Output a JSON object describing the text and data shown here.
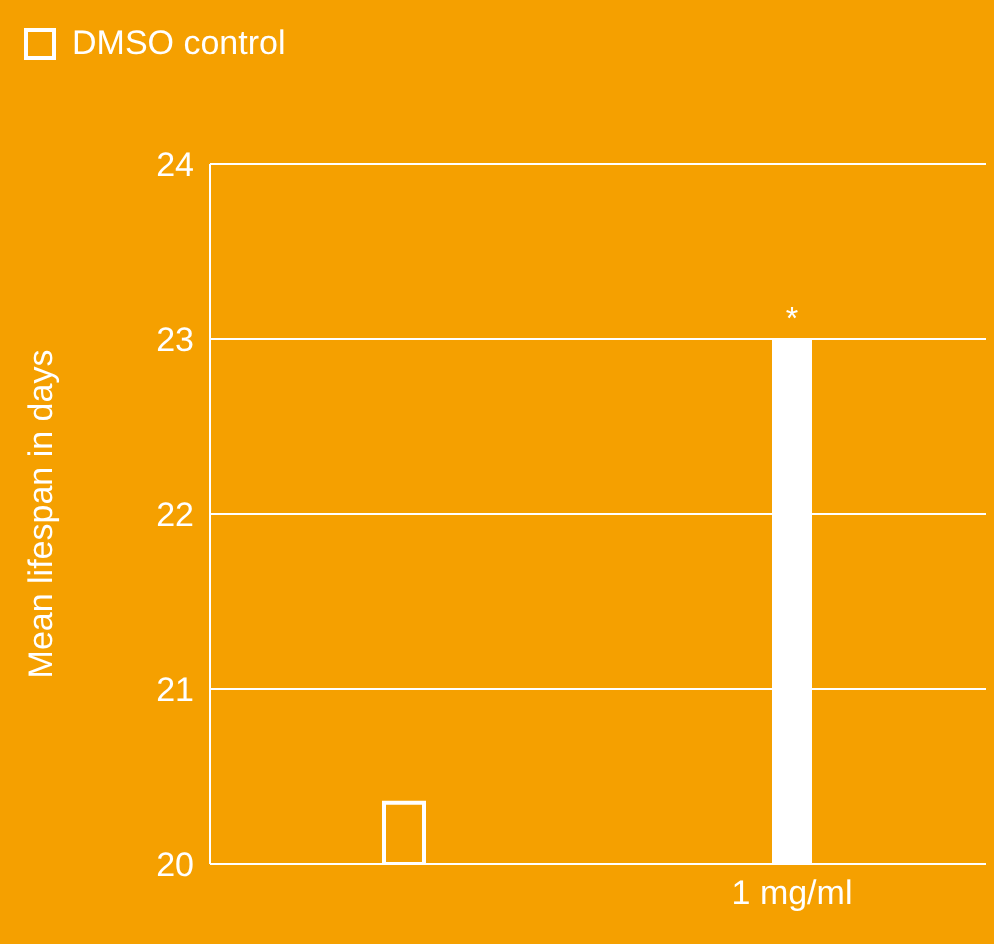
{
  "chart_data": {
    "type": "bar",
    "ylabel": "Mean lifespan in days",
    "categories": [
      null,
      "1 mg/ml"
    ],
    "series": [
      {
        "name": "DMSO control",
        "color": "#ffffff",
        "values": [
          20.35,
          null
        ]
      },
      {
        "color": "#ffffff",
        "values": [
          null,
          23
        ]
      }
    ],
    "ylim": [
      20,
      24
    ],
    "yticks": [
      20,
      21,
      22,
      23,
      24
    ],
    "grid": "y",
    "legend": "top left",
    "annotations": [
      {
        "text": "*",
        "x": "1 mg/ml",
        "y": 23
      }
    ]
  }
}
